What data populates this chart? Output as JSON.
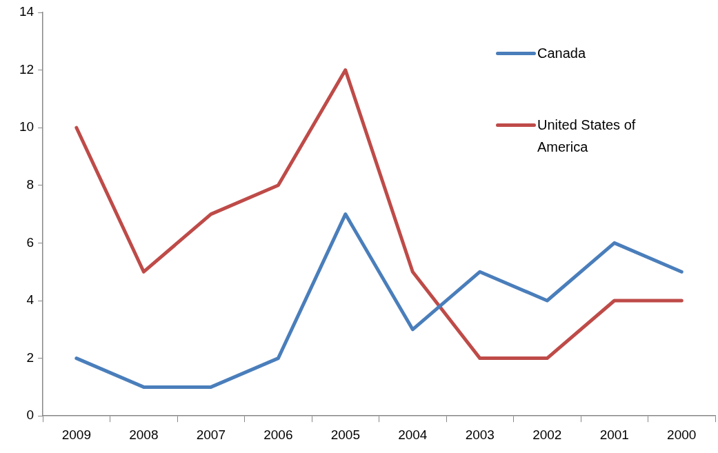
{
  "chart_data": {
    "type": "line",
    "categories": [
      "2009",
      "2008",
      "2007",
      "2006",
      "2005",
      "2004",
      "2003",
      "2002",
      "2001",
      "2000"
    ],
    "series": [
      {
        "name": "Canada",
        "color": "#4a7ebb",
        "values": [
          2,
          1,
          1,
          2,
          7,
          3,
          5,
          4,
          6,
          5
        ]
      },
      {
        "name": "United States of America",
        "color": "#be4b48",
        "values": [
          10,
          5,
          7,
          8,
          12,
          5,
          2,
          2,
          4,
          4
        ]
      }
    ],
    "ylim": [
      0,
      14
    ],
    "yticks": [
      0,
      2,
      4,
      6,
      8,
      10,
      12,
      14
    ],
    "grid": false,
    "legend": "top right",
    "marker": "none"
  }
}
